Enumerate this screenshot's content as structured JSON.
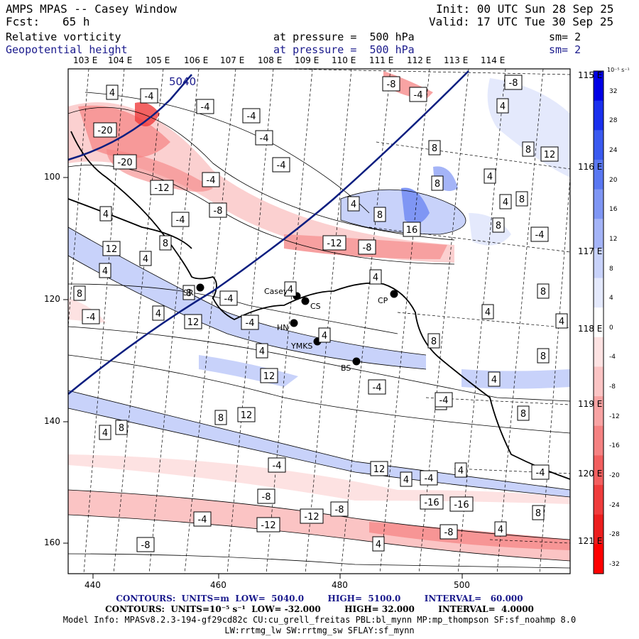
{
  "header": {
    "title": "AMPS MPAS -- Casey Window",
    "fcst_label": "Fcst:",
    "fcst_value": "65 h",
    "init": "Init: 00 UTC Sun 28 Sep 25",
    "valid": "Valid: 17 UTC Tue 30 Sep 25",
    "field1_name": "Relative vorticity",
    "field1_level": "at pressure =  500 hPa",
    "field1_sm": "sm= 2",
    "field2_name": "Geopotential height",
    "field2_level": "at pressure =  500 hPa",
    "field2_sm": "sm= 2"
  },
  "map": {
    "top_lon_labels": [
      "103 E",
      "104 E",
      "105 E",
      "106 E",
      "107 E",
      "108 E",
      "109 E",
      "110 E",
      "111 E",
      "112 E",
      "113 E",
      "114 E"
    ],
    "right_lon_labels": [
      "115 E",
      "116 E",
      "117 E",
      "118 E",
      "119 E",
      "120 E",
      "121 E"
    ],
    "x_ticks": [
      "440",
      "460",
      "480",
      "500"
    ],
    "y_ticks": [
      "100",
      "120",
      "140",
      "160"
    ],
    "height_label": "5040",
    "stations": [
      "SR",
      "Casey",
      "CS",
      "CP",
      "HN",
      "YMKS",
      "BS"
    ],
    "contour_labels": [
      "4",
      "-4",
      "-4",
      "-4",
      "-20",
      "-20",
      "-12",
      "-4",
      "-4",
      "-8",
      "-4",
      "-4",
      "8",
      "8",
      "4",
      "4",
      "12",
      "8",
      "4",
      "4",
      "4",
      "-4",
      "-4",
      "12",
      "8",
      "4",
      "4",
      "12",
      "8",
      "4",
      "-4",
      "4",
      "8",
      "-8",
      "-4",
      "-8",
      "-12",
      "-8",
      "16",
      "8",
      "8",
      "8",
      "4",
      "4",
      "-4",
      "8",
      "12",
      "4",
      "4",
      "4",
      "-4",
      "8",
      "8",
      "4",
      "8",
      "8",
      "12",
      "4",
      "12",
      "4",
      "4",
      "4",
      "8",
      "-4",
      "-4",
      "-4",
      "-16",
      "-8",
      "-12",
      "-8",
      "-16",
      "-12",
      "-8",
      "4",
      "-4",
      "-4",
      "8",
      "-8",
      "4"
    ]
  },
  "colorbar": {
    "unit": "10⁻⁵ s⁻¹",
    "levels": [
      "32",
      "28",
      "24",
      "20",
      "16",
      "12",
      "8",
      "4",
      "0",
      "-4",
      "-8",
      "-12",
      "-16",
      "-20",
      "-24",
      "-28",
      "-32"
    ],
    "colors": [
      "#0000e6",
      "#1a30ee",
      "#3a5af0",
      "#5a78f2",
      "#7f96f4",
      "#a4b4f7",
      "#c8d2fa",
      "#e4e9fc",
      "#ffffff",
      "#fde2e2",
      "#fbc4c4",
      "#f8a3a3",
      "#f58282",
      "#f25f5f",
      "#ef3c3c",
      "#ec1e1e",
      "#ff0000"
    ]
  },
  "footer": {
    "line1": "CONTOURS:  UNITS=m  LOW=  5040.0        HIGH=  5100.0        INTERVAL=   60.000",
    "line2": "CONTOURS:  UNITS=10⁻⁵ s⁻¹  LOW= -32.000        HIGH= 32.000        INTERVAL=  4.0000",
    "line3": "Model Info: MPASv8.2.3-194-gf29cd82c CU:cu_grell_freitas PBL:bl_mynn MP:mp_thompson SF:sf_noahmp 8.0",
    "line4": "LW:rrtmg_lw SW:rrtmg_sw SFLAY:sf_mynn"
  }
}
